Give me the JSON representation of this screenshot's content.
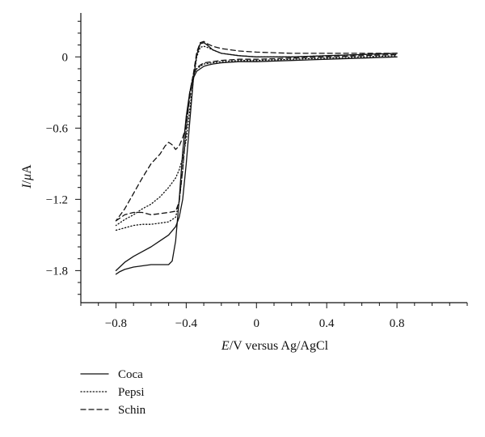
{
  "chart_data": {
    "type": "line",
    "title": "",
    "xlabel": {
      "italic": "E",
      "rest": "/V versus Ag/AgCl"
    },
    "ylabel": {
      "italic": "I",
      "sep": "/",
      "mu": "μ",
      "unit": "A"
    },
    "xlim": [
      -1.0,
      1.2
    ],
    "ylim": [
      -2.07,
      0.37
    ],
    "x_ticks": [
      -0.8,
      -0.4,
      0,
      0.4,
      0.8
    ],
    "x_tick_labels": [
      "−0.8",
      "−0.4",
      "0",
      "0.4",
      "0.8"
    ],
    "x_minor_ticks": [
      -1.0,
      -0.9,
      -0.7,
      -0.6,
      -0.5,
      -0.3,
      -0.2,
      -0.1,
      0.1,
      0.2,
      0.3,
      0.5,
      0.6,
      0.7,
      0.9,
      1.0,
      1.1,
      1.2
    ],
    "y_ticks": [
      0,
      -0.6,
      -1.2,
      -1.8
    ],
    "y_tick_labels": [
      "0",
      "−0.6",
      "−1.2",
      "−1.8"
    ],
    "y_minor_ticks": [
      0.3,
      0.2,
      0.1,
      -0.1,
      -0.2,
      -0.3,
      -0.4,
      -0.5,
      -0.7,
      -0.8,
      -0.9,
      -1.0,
      -1.1,
      -1.3,
      -1.4,
      -1.5,
      -1.6,
      -1.7,
      -1.9,
      -2.0
    ],
    "grid": false,
    "legend_position": "bottom-left",
    "series": [
      {
        "name": "Coca",
        "dash": "solid",
        "forward": {
          "x": [
            -0.8,
            -0.78,
            -0.75,
            -0.7,
            -0.65,
            -0.6,
            -0.55,
            -0.5,
            -0.48,
            -0.46,
            -0.44,
            -0.42,
            -0.4,
            -0.38,
            -0.36,
            -0.34,
            -0.32,
            -0.3,
            -0.28,
            -0.25,
            -0.2,
            -0.1,
            0,
            0.2,
            0.4,
            0.6,
            0.8
          ],
          "y": [
            -1.83,
            -1.81,
            -1.79,
            -1.77,
            -1.76,
            -1.75,
            -1.75,
            -1.75,
            -1.72,
            -1.55,
            -1.2,
            -0.8,
            -0.5,
            -0.3,
            -0.18,
            -0.12,
            -0.1,
            -0.08,
            -0.07,
            -0.06,
            -0.05,
            -0.04,
            -0.04,
            -0.03,
            -0.02,
            -0.01,
            0.0
          ]
        },
        "reverse": {
          "x": [
            0.8,
            0.6,
            0.4,
            0.2,
            0,
            -0.1,
            -0.2,
            -0.25,
            -0.28,
            -0.3,
            -0.32,
            -0.34,
            -0.36,
            -0.38,
            -0.4,
            -0.42,
            -0.44,
            -0.46,
            -0.5,
            -0.55,
            -0.6,
            -0.65,
            -0.7,
            -0.75,
            -0.8
          ],
          "y": [
            0.03,
            0.02,
            0.01,
            0.0,
            0.0,
            0.01,
            0.03,
            0.06,
            0.1,
            0.12,
            0.11,
            0.02,
            -0.2,
            -0.55,
            -0.9,
            -1.2,
            -1.35,
            -1.43,
            -1.5,
            -1.55,
            -1.6,
            -1.64,
            -1.68,
            -1.73,
            -1.8
          ]
        }
      },
      {
        "name": "Pepsi",
        "dash": "dotted",
        "forward": {
          "x": [
            -0.8,
            -0.75,
            -0.7,
            -0.65,
            -0.6,
            -0.55,
            -0.5,
            -0.46,
            -0.44,
            -0.42,
            -0.4,
            -0.38,
            -0.36,
            -0.34,
            -0.32,
            -0.3,
            -0.25,
            -0.2,
            -0.1,
            0,
            0.2,
            0.4,
            0.6,
            0.8
          ],
          "y": [
            -1.46,
            -1.44,
            -1.42,
            -1.41,
            -1.41,
            -1.4,
            -1.39,
            -1.35,
            -1.22,
            -0.95,
            -0.6,
            -0.3,
            -0.15,
            -0.1,
            -0.08,
            -0.06,
            -0.05,
            -0.04,
            -0.03,
            -0.03,
            -0.02,
            -0.01,
            0.0,
            0.01
          ]
        },
        "reverse": {
          "x": [
            0.8,
            0.6,
            0.4,
            0.2,
            0,
            -0.1,
            -0.2,
            -0.25,
            -0.28,
            -0.3,
            -0.32,
            -0.34,
            -0.36,
            -0.38,
            -0.4,
            -0.42,
            -0.44,
            -0.46,
            -0.5,
            -0.55,
            -0.6,
            -0.65,
            -0.7,
            -0.75,
            -0.8
          ],
          "y": [
            0.03,
            0.02,
            0.01,
            0.0,
            0.0,
            0.01,
            0.03,
            0.06,
            0.08,
            0.09,
            0.08,
            0.0,
            -0.2,
            -0.45,
            -0.7,
            -0.85,
            -0.95,
            -1.02,
            -1.1,
            -1.18,
            -1.24,
            -1.28,
            -1.33,
            -1.37,
            -1.42
          ]
        }
      },
      {
        "name": "Schin",
        "dash": "dashed",
        "forward": {
          "x": [
            -0.8,
            -0.75,
            -0.7,
            -0.65,
            -0.6,
            -0.55,
            -0.5,
            -0.46,
            -0.44,
            -0.42,
            -0.4,
            -0.38,
            -0.36,
            -0.34,
            -0.32,
            -0.3,
            -0.25,
            -0.2,
            -0.1,
            0,
            0.2,
            0.4,
            0.6,
            0.8
          ],
          "y": [
            -1.38,
            -1.33,
            -1.31,
            -1.31,
            -1.33,
            -1.32,
            -1.31,
            -1.3,
            -1.22,
            -0.95,
            -0.6,
            -0.3,
            -0.15,
            -0.09,
            -0.07,
            -0.05,
            -0.04,
            -0.03,
            -0.02,
            -0.02,
            -0.01,
            0.0,
            0.01,
            0.02
          ]
        },
        "reverse": {
          "x": [
            0.8,
            0.6,
            0.4,
            0.2,
            0,
            -0.1,
            -0.2,
            -0.25,
            -0.28,
            -0.3,
            -0.32,
            -0.34,
            -0.36,
            -0.38,
            -0.4,
            -0.42,
            -0.44,
            -0.46,
            -0.48,
            -0.5,
            -0.52,
            -0.55,
            -0.6,
            -0.65,
            -0.7,
            -0.75,
            -0.8
          ],
          "y": [
            0.03,
            0.03,
            0.03,
            0.03,
            0.04,
            0.05,
            0.07,
            0.09,
            0.11,
            0.13,
            0.12,
            0.04,
            -0.15,
            -0.35,
            -0.58,
            -0.68,
            -0.75,
            -0.78,
            -0.74,
            -0.72,
            -0.75,
            -0.82,
            -0.9,
            -1.02,
            -1.15,
            -1.28,
            -1.38
          ]
        }
      }
    ]
  }
}
